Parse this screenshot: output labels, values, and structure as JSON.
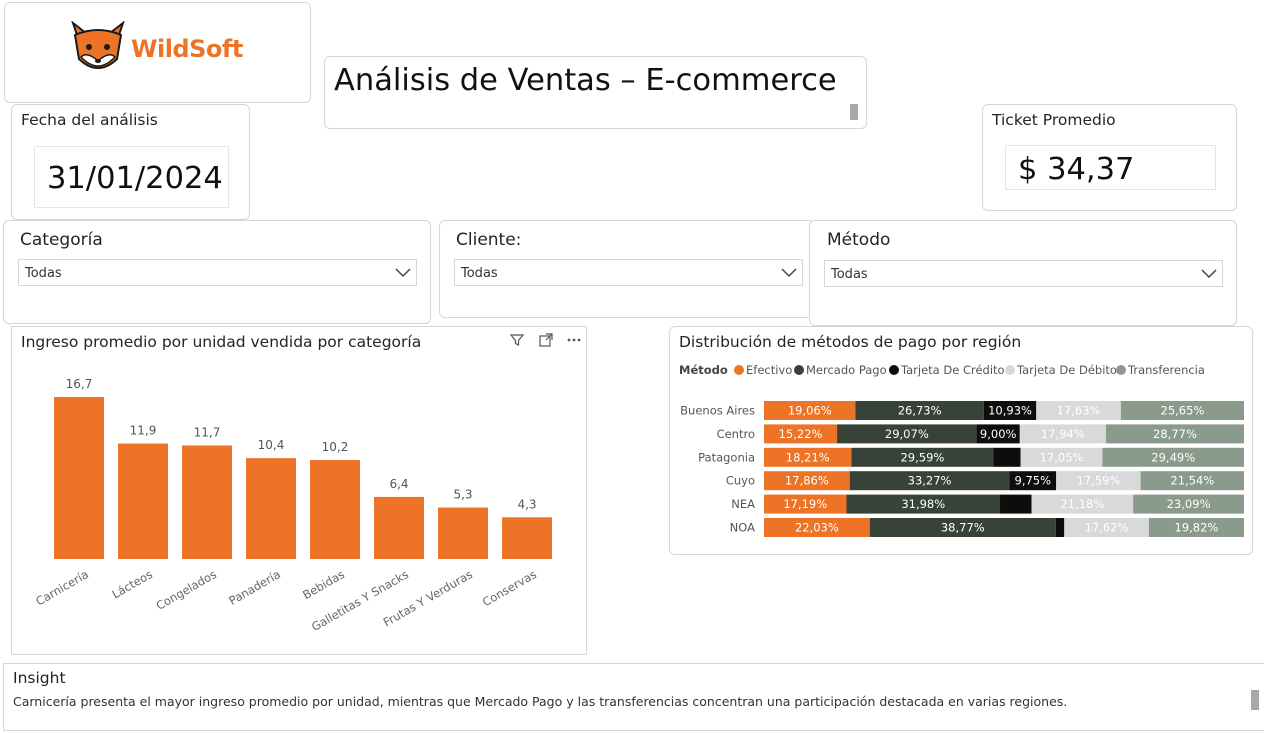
{
  "logo": {
    "text": "WildSoft",
    "icon": "fox-logo-icon"
  },
  "title": "Análisis de Ventas – E-commerce",
  "date_card": {
    "label": "Fecha del análisis",
    "value": "31/01/2024"
  },
  "ticket_card": {
    "label": "Ticket Promedio",
    "value": "$ 34,37"
  },
  "filters": {
    "categoria": {
      "label": "Categoría",
      "value": "Todas"
    },
    "cliente": {
      "label": "Cliente:",
      "value": "Todas"
    },
    "metodo": {
      "label": "Método",
      "value": "Todas"
    }
  },
  "bar_chart": {
    "icons": [
      "filter-icon",
      "focus-mode-icon",
      "more-options-icon"
    ]
  },
  "chart_data": [
    {
      "type": "bar",
      "title": "Ingreso promedio por unidad vendida por categoría",
      "categories": [
        "Carnicería",
        "Lácteos",
        "Congelados",
        "Panadería",
        "Bebidas",
        "Galletitas Y Snacks",
        "Frutas Y Verduras",
        "Conservas"
      ],
      "values": [
        16.7,
        11.9,
        11.7,
        10.4,
        10.2,
        6.4,
        5.3,
        4.3
      ],
      "value_labels": [
        "16,7",
        "11,9",
        "11,7",
        "10,4",
        "10,2",
        "6,4",
        "5,3",
        "4,3"
      ],
      "ylim": [
        0,
        16.7
      ],
      "color": "#ED7426",
      "grid": false
    },
    {
      "type": "bar",
      "orientation": "horizontal-stacked-100",
      "title": "Distribución de métodos de pago por región",
      "legend_title": "Método",
      "legend_position": "top-left",
      "categories": [
        "Buenos Aires",
        "Centro",
        "Patagonia",
        "Cuyo",
        "NEA",
        "NOA"
      ],
      "series": [
        {
          "name": "Efectivo",
          "color": "#ED7426",
          "text_color": "#ffffff",
          "values": [
            19.06,
            15.22,
            18.21,
            17.86,
            17.19,
            22.03
          ],
          "labels": [
            "19,06%",
            "15,22%",
            "18,21%",
            "17,86%",
            "17,19%",
            "22,03%"
          ]
        },
        {
          "name": "Mercado Pago",
          "color": "#374238",
          "text_color": "#ffffff",
          "values": [
            26.73,
            29.07,
            29.59,
            33.27,
            31.98,
            38.77
          ],
          "labels": [
            "26,73%",
            "29,07%",
            "29,59%",
            "33,27%",
            "31,98%",
            "38,77%"
          ]
        },
        {
          "name": "Tarjeta De Crédito",
          "color": "#0d0d0d",
          "text_color": "#ffffff",
          "values": [
            10.93,
            9.0,
            5.66,
            9.75,
            6.56,
            1.76
          ],
          "labels": [
            "10,93%",
            "9,00%",
            "",
            "9,75%",
            "",
            ""
          ]
        },
        {
          "name": "Tarjeta De Débito",
          "color": "#d9d9d9",
          "text_color": "#ffffff",
          "values": [
            17.63,
            17.94,
            17.05,
            17.59,
            21.18,
            17.62
          ],
          "labels": [
            "17,63%",
            "17,94%",
            "17,05%",
            "17,59%",
            "21,18%",
            "17,62%"
          ]
        },
        {
          "name": "Transferencia",
          "color": "#8a9a8b",
          "text_color": "#ffffff",
          "values": [
            25.65,
            28.77,
            29.49,
            21.54,
            23.09,
            19.82
          ],
          "labels": [
            "25,65%",
            "28,77%",
            "29,49%",
            "21,54%",
            "23,09%",
            "19,82%"
          ]
        }
      ]
    }
  ],
  "insight": {
    "label": "Insight",
    "text": "Carnicería presenta el mayor ingreso promedio por unidad, mientras que Mercado Pago y las transferencias concentran una participación destacada en varias regiones."
  }
}
